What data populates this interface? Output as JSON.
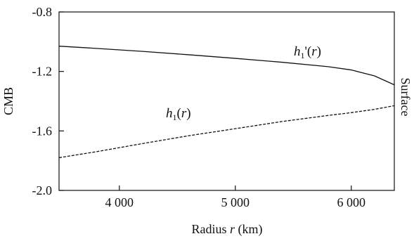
{
  "chart_data": {
    "type": "line",
    "title": "",
    "xlabel": {
      "prefix": "Radius ",
      "variable": "r",
      "suffix": " (km)"
    },
    "ylabel_left": "CMB",
    "ylabel_right": "Surface",
    "xlim": [
      3480,
      6371
    ],
    "ylim": [
      -2.0,
      -0.8
    ],
    "x_ticks": [
      4000,
      5000,
      6000
    ],
    "x_tick_labels": [
      "4 000",
      "5 000",
      "6 000"
    ],
    "y_ticks": [
      -2.0,
      -1.6,
      -1.2,
      -0.8
    ],
    "y_tick_labels": [
      "-2.0",
      "-1.6",
      "-1.2",
      "-0.8"
    ],
    "grid": false,
    "legend": "none",
    "series": [
      {
        "name": "h1'(r)",
        "label_parts": {
          "base": "h",
          "sub": "1",
          "rest": "'(",
          "var": "r",
          "close": ")"
        },
        "style": "solid",
        "color": "#111111",
        "x": [
          3480,
          3800,
          4200,
          4600,
          5000,
          5400,
          5800,
          6000,
          6200,
          6371
        ],
        "y": [
          -1.03,
          -1.045,
          -1.065,
          -1.088,
          -1.112,
          -1.138,
          -1.168,
          -1.19,
          -1.23,
          -1.29
        ]
      },
      {
        "name": "h1(r)",
        "label_parts": {
          "base": "h",
          "sub": "1",
          "rest": "(",
          "var": "r",
          "close": ")"
        },
        "style": "dashed",
        "color": "#111111",
        "x": [
          3480,
          3800,
          4200,
          4600,
          5000,
          5400,
          5800,
          6000,
          6200,
          6371
        ],
        "y": [
          -1.78,
          -1.74,
          -1.685,
          -1.632,
          -1.585,
          -1.537,
          -1.496,
          -1.477,
          -1.455,
          -1.43
        ]
      }
    ]
  }
}
